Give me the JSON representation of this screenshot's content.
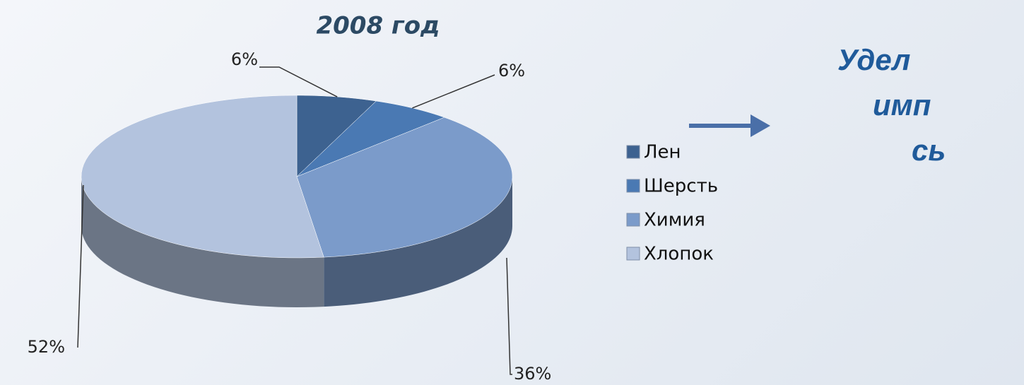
{
  "chart_data": {
    "type": "pie3d",
    "title": "2008 год",
    "categories": [
      "Лен",
      "Шерсть",
      "Химия",
      "Хлопок"
    ],
    "values": [
      6,
      6,
      36,
      52
    ],
    "value_labels": [
      "6%",
      "6%",
      "36%",
      "52%"
    ],
    "colors": [
      "#3d6290",
      "#4a79b3",
      "#7b9bca",
      "#b3c3de"
    ],
    "legend": "right"
  },
  "side_text": [
    "Удел",
    "имп",
    "сь"
  ]
}
